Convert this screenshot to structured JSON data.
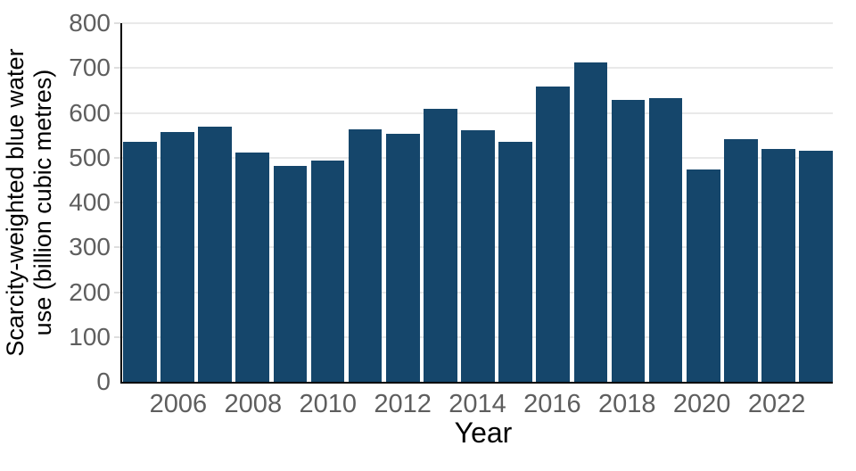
{
  "chart_data": {
    "type": "bar",
    "title": "",
    "xlabel": "Year",
    "ylabel": "Scarcity-weighted blue water use (billion cubic metres)",
    "ylabel_line1": "Scarcity-weighted blue water",
    "ylabel_line2": "use (billion cubic metres)",
    "categories": [
      "2005",
      "2006",
      "2007",
      "2008",
      "2009",
      "2010",
      "2011",
      "2012",
      "2013",
      "2014",
      "2015",
      "2016",
      "2017",
      "2018",
      "2019",
      "2020",
      "2021",
      "2022",
      "2023"
    ],
    "values": [
      535,
      557,
      570,
      512,
      481,
      494,
      563,
      553,
      609,
      562,
      535,
      658,
      713,
      629,
      633,
      474,
      541,
      519,
      515
    ],
    "x_tick_labels": [
      "2006",
      "2008",
      "2010",
      "2012",
      "2014",
      "2016",
      "2018",
      "2020",
      "2022"
    ],
    "y_tick_labels": [
      "0",
      "100",
      "200",
      "300",
      "400",
      "500",
      "600",
      "700",
      "800"
    ],
    "y_ticks": [
      0,
      100,
      200,
      300,
      400,
      500,
      600,
      700,
      800
    ],
    "ylim": [
      0,
      800
    ],
    "grid": "horizontal",
    "legend": "none",
    "colors": {
      "bar": "#15466b",
      "grid": "#e9e9e9",
      "axis": "#000000",
      "tick_text": "#5e5e5e",
      "axis_title_text": "#000000"
    }
  }
}
